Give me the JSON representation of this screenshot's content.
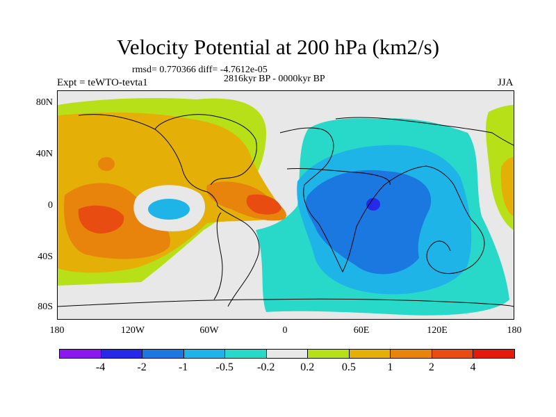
{
  "figure": {
    "title": "Velocity Potential at 200 hPa (km2/s)",
    "stats": "rmsd= 0.770366 diff= -4.7612e-05",
    "experiment": "Expt = teWTO-tevta1",
    "period": "2816kyr BP - 0000kyr BP",
    "season": "JJA"
  },
  "axes": {
    "y_ticks": [
      "80N",
      "40N",
      "0",
      "40S",
      "80S"
    ],
    "x_ticks": [
      "180",
      "120W",
      "60W",
      "0",
      "60E",
      "120E",
      "180"
    ]
  },
  "colorbar": {
    "colors": [
      "#8b18ee",
      "#2828e8",
      "#1a78e0",
      "#1fb4e8",
      "#28d8c8",
      "#e8e8e8",
      "#b8e018",
      "#e4b008",
      "#e8840c",
      "#e84c10",
      "#e41a0a"
    ],
    "labels": [
      "-4",
      "-2",
      "-1",
      "-0.5",
      "-0.2",
      "0.2",
      "0.5",
      "1",
      "2",
      "4"
    ]
  },
  "colors": {
    "neutral": "#e8e8e8",
    "coast": "#000000"
  }
}
